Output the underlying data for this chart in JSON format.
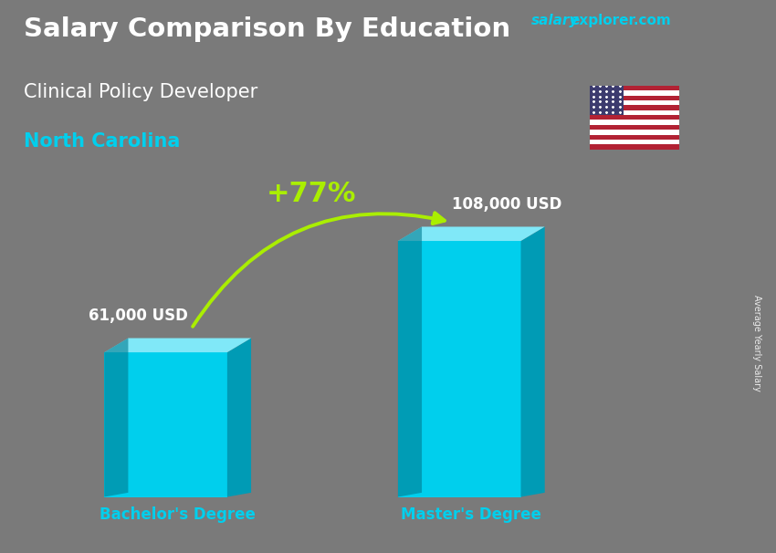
{
  "title1": "Salary Comparison By Education",
  "title2": "Clinical Policy Developer",
  "title3": "North Carolina",
  "categories": [
    "Bachelor's Degree",
    "Master's Degree"
  ],
  "values": [
    61000,
    108000
  ],
  "value_labels": [
    "61,000 USD",
    "108,000 USD"
  ],
  "percent_change": "+77%",
  "bar_face_color": "#00CFED",
  "bar_right_color": "#009BB5",
  "bar_top_color": "#80E8F8",
  "bar_left_color": "#007A90",
  "ylabel_text": "Average Yearly Salary",
  "title_color": "#FFFFFF",
  "location_color": "#00CFED",
  "xlabel_color": "#00CFED",
  "percent_color": "#AAEE00",
  "bg_color": "#6a6a6a",
  "brand_salary_color": "#00CFED",
  "brand_explorer_color": "#00CFED",
  "fig_width": 8.5,
  "fig_height": 6.06,
  "dpi": 100
}
